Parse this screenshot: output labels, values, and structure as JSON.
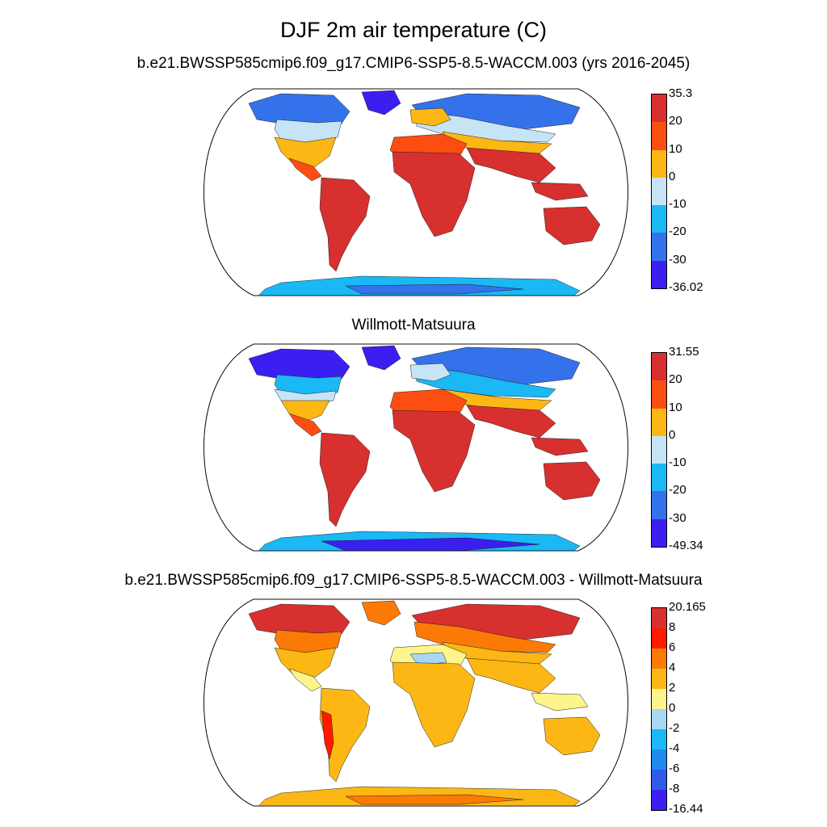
{
  "title": "DJF 2m air temperature (C)",
  "panels": [
    {
      "title": "b.e21.BWSSP585cmip6.f09_g17.CMIP6-SSP5-8.5-WACCM.003 (yrs 2016-2045)",
      "colorbar": {
        "colors": [
          "#d7302f",
          "#fc4e10",
          "#fdb714",
          "#c6e4f6",
          "#1ab8f5",
          "#3372eb",
          "#3b1ff0"
        ],
        "labels": [
          "35.3",
          "20",
          "10",
          "0",
          "-10",
          "-20",
          "-30",
          "-36.02"
        ]
      }
    },
    {
      "title": "Willmott-Matsuura",
      "colorbar": {
        "colors": [
          "#d7302f",
          "#fc4e10",
          "#fdb714",
          "#c6e4f6",
          "#1ab8f5",
          "#3372eb",
          "#3b1ff0"
        ],
        "labels": [
          "31.55",
          "20",
          "10",
          "0",
          "-10",
          "-20",
          "-30",
          "-49.34"
        ]
      }
    },
    {
      "title": "b.e21.BWSSP585cmip6.f09_g17.CMIP6-SSP5-8.5-WACCM.003 - Willmott-Matsuura",
      "colorbar": {
        "colors": [
          "#d7302f",
          "#ff1a00",
          "#fc7a06",
          "#fdb714",
          "#fdf58c",
          "#a8d7f2",
          "#1ab8f5",
          "#1e8bf0",
          "#2e5be8",
          "#3b1ff0"
        ],
        "labels": [
          "20.165",
          "8",
          "6",
          "4",
          "2",
          "0",
          "-2",
          "-4",
          "-6",
          "-8",
          "-16.44"
        ]
      }
    }
  ]
}
